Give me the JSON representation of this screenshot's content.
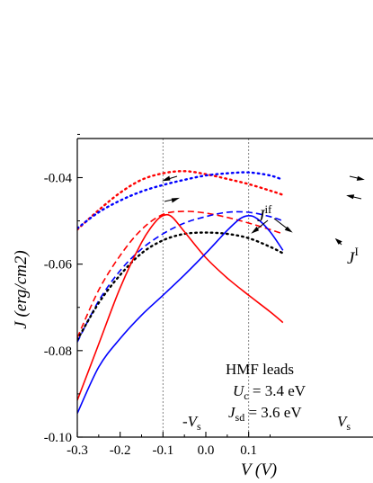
{
  "chart_data": {
    "type": "line",
    "xlabel": "V (V)",
    "ylabel": "J (erg/cm2)",
    "xlim": [
      -0.3,
      0.18
    ],
    "ylim": [
      -0.1,
      -0.03
    ],
    "x_ticks": [
      "-0.3",
      "-0.2",
      "-0.1",
      "0.0",
      "0.1"
    ],
    "y_ticks": [
      "-0.10",
      "-0.08",
      "-0.06",
      "-0.04"
    ],
    "grid": false,
    "reference_lines_x": [
      -0.1,
      0.1
    ],
    "series": [
      {
        "color": "#ff0000",
        "dash": "dot",
        "x": [
          -0.3,
          -0.25,
          -0.2,
          -0.15,
          -0.1,
          -0.05,
          0.0,
          0.05,
          0.1,
          0.15,
          0.18
        ],
        "y": [
          -0.052,
          -0.0475,
          -0.0435,
          -0.0405,
          -0.039,
          -0.0385,
          -0.0392,
          -0.0403,
          -0.0415,
          -0.043,
          -0.044
        ]
      },
      {
        "color": "#0000ff",
        "dash": "dot",
        "x": [
          -0.3,
          -0.25,
          -0.2,
          -0.15,
          -0.1,
          -0.05,
          0.0,
          0.05,
          0.1,
          0.15,
          0.18
        ],
        "y": [
          -0.0517,
          -0.048,
          -0.0453,
          -0.0432,
          -0.0417,
          -0.0405,
          -0.0395,
          -0.039,
          -0.0388,
          -0.0395,
          -0.0405
        ]
      },
      {
        "color": "#ff0000",
        "dash": "dash",
        "x": [
          -0.3,
          -0.25,
          -0.2,
          -0.15,
          -0.1,
          -0.05,
          0.0,
          0.05,
          0.1,
          0.15,
          0.18
        ],
        "y": [
          -0.077,
          -0.066,
          -0.058,
          -0.052,
          -0.0485,
          -0.0478,
          -0.0482,
          -0.0492,
          -0.0505,
          -0.052,
          -0.053
        ]
      },
      {
        "color": "#0000ff",
        "dash": "dash",
        "x": [
          -0.3,
          -0.25,
          -0.2,
          -0.15,
          -0.1,
          -0.05,
          0.0,
          0.05,
          0.1,
          0.15,
          0.18
        ],
        "y": [
          -0.078,
          -0.0685,
          -0.0615,
          -0.0565,
          -0.053,
          -0.0505,
          -0.049,
          -0.048,
          -0.048,
          -0.049,
          -0.05
        ]
      },
      {
        "color": "#000000",
        "dash": "dot",
        "x": [
          -0.3,
          -0.25,
          -0.2,
          -0.15,
          -0.1,
          -0.05,
          0.0,
          0.05,
          0.1,
          0.15,
          0.18
        ],
        "y": [
          -0.0775,
          -0.069,
          -0.0625,
          -0.0575,
          -0.0545,
          -0.053,
          -0.0527,
          -0.053,
          -0.054,
          -0.056,
          -0.0575
        ]
      },
      {
        "color": "#ff0000",
        "dash": "solid",
        "x": [
          -0.3,
          -0.25,
          -0.2,
          -0.15,
          -0.12,
          -0.1,
          -0.08,
          -0.05,
          0.0,
          0.05,
          0.1,
          0.15,
          0.18
        ],
        "y": [
          -0.0915,
          -0.0785,
          -0.0655,
          -0.055,
          -0.0505,
          -0.0488,
          -0.049,
          -0.0525,
          -0.0585,
          -0.0632,
          -0.0672,
          -0.071,
          -0.0735
        ]
      },
      {
        "color": "#0000ff",
        "dash": "solid",
        "x": [
          -0.3,
          -0.25,
          -0.2,
          -0.15,
          -0.1,
          -0.05,
          0.0,
          0.05,
          0.08,
          0.1,
          0.12,
          0.15,
          0.18
        ],
        "y": [
          -0.0945,
          -0.0838,
          -0.0772,
          -0.0718,
          -0.0672,
          -0.0625,
          -0.0575,
          -0.0522,
          -0.0495,
          -0.0488,
          -0.0495,
          -0.0525,
          -0.0568
        ]
      }
    ],
    "annotations": {
      "j_if": "J",
      "j_if_sup": "if",
      "j_i": "J",
      "j_i_sup": "I",
      "vs_neg": "-V",
      "vs_neg_sub": "s",
      "vs_pos": "V",
      "vs_pos_sub": "s",
      "leads_title": "HMF leads",
      "uc_sym": "U",
      "uc_sub": "c",
      "uc_value": " = 3.4 eV",
      "jsd_sym": "J",
      "jsd_sub": "sd",
      "jsd_value": " = 3.6 eV"
    }
  }
}
